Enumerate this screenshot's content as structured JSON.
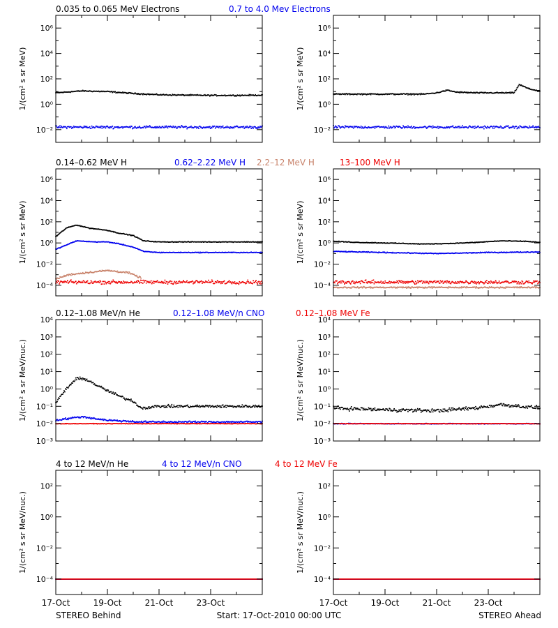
{
  "colors": {
    "black": "#000000",
    "blue": "#0000ee",
    "tan": "#c8826a",
    "red": "#ee0000"
  },
  "panel_rows": [
    {
      "legend": [
        {
          "label": "0.035 to 0.065 MeV Electrons",
          "color": "black"
        },
        {
          "label": "0.7 to 4.0 Mev Electrons",
          "color": "blue"
        }
      ],
      "ylabel": "1/(cm² s sr MeV)",
      "yticks": [
        "10⁻²",
        "10⁰",
        "10²",
        "10⁴",
        "10⁶"
      ]
    },
    {
      "legend": [
        {
          "label": "0.14–0.62 MeV H",
          "color": "black"
        },
        {
          "label": "0.62–2.22 MeV H",
          "color": "blue"
        },
        {
          "label": "2.2–12 MeV H",
          "color": "tan"
        },
        {
          "label": "13–100 MeV H",
          "color": "red"
        }
      ],
      "ylabel": "1/(cm² s sr MeV)",
      "yticks": [
        "10⁻⁴",
        "10⁻²",
        "10⁰",
        "10²",
        "10⁴",
        "10⁶"
      ]
    },
    {
      "legend": [
        {
          "label": "0.12–1.08 MeV/n He",
          "color": "black"
        },
        {
          "label": "0.12–1.08 MeV/n CNO",
          "color": "blue"
        },
        {
          "label": "0.12–1.08 MeV Fe",
          "color": "red"
        }
      ],
      "ylabel": "1/(cm² s sr MeV/nuc.)",
      "yticks": [
        "10⁻³",
        "10⁻²",
        "10⁻¹",
        "10⁰",
        "10¹",
        "10²",
        "10³",
        "10⁴"
      ]
    },
    {
      "legend": [
        {
          "label": "4 to 12 MeV/n He",
          "color": "black"
        },
        {
          "label": "4 to 12 MeV/n CNO",
          "color": "blue"
        },
        {
          "label": "4 to 12 MeV Fe",
          "color": "red"
        }
      ],
      "ylabel": "1/(cm² s sr MeV/nuc.)",
      "yticks": [
        "10⁻⁴",
        "10⁻²",
        "10⁰",
        "10²"
      ]
    }
  ],
  "xticks": [
    "17-Oct",
    "19-Oct",
    "21-Oct",
    "23-Oct"
  ],
  "footer": {
    "left": "STEREO Behind",
    "center": "Start: 17-Oct-2010 00:00 UTC",
    "right": "STEREO Ahead"
  },
  "chart_data": [
    {
      "type": "scatter",
      "spacecraft": "STEREO Behind",
      "x_unit": "days since 17-Oct-2010 00:00 UTC",
      "xlim": [
        0,
        8
      ],
      "ylabel": "1/(cm² s sr MeV)",
      "y_log": true,
      "ylim_exp": [
        -3,
        7
      ],
      "series": [
        {
          "name": "0.035 to 0.065 MeV Electrons",
          "color": "black",
          "noise": 0.07,
          "points": [
            [
              0,
              0.9
            ],
            [
              1,
              1.05
            ],
            [
              2,
              1.0
            ],
            [
              3,
              0.85
            ],
            [
              4,
              0.75
            ],
            [
              5,
              0.72
            ],
            [
              6,
              0.7
            ],
            [
              7,
              0.7
            ],
            [
              8,
              0.72
            ]
          ]
        },
        {
          "name": "0.7 to 4.0 Mev Electrons",
          "color": "blue",
          "noise": 0.15,
          "points": [
            [
              0,
              -1.8
            ],
            [
              8,
              -1.8
            ]
          ]
        }
      ]
    },
    {
      "type": "scatter",
      "spacecraft": "STEREO Ahead",
      "x_unit": "days since 17-Oct-2010 00:00 UTC",
      "xlim": [
        0,
        8
      ],
      "ylabel": "1/(cm² s sr MeV)",
      "y_log": true,
      "ylim_exp": [
        -3,
        7
      ],
      "series": [
        {
          "name": "0.035 to 0.065 MeV Electrons",
          "color": "black",
          "noise": 0.07,
          "points": [
            [
              0,
              0.8
            ],
            [
              3.5,
              0.8
            ],
            [
              4.0,
              0.9
            ],
            [
              4.4,
              1.1
            ],
            [
              4.8,
              0.95
            ],
            [
              5.5,
              0.9
            ],
            [
              6.8,
              0.9
            ],
            [
              7.0,
              0.9
            ],
            [
              7.2,
              1.55
            ],
            [
              7.6,
              1.2
            ],
            [
              8,
              1.05
            ]
          ]
        },
        {
          "name": "0.7 to 4.0 Mev Electrons",
          "color": "blue",
          "noise": 0.15,
          "points": [
            [
              0,
              -1.8
            ],
            [
              8,
              -1.8
            ]
          ]
        }
      ]
    },
    {
      "type": "scatter",
      "spacecraft": "STEREO Behind",
      "x_unit": "days since 17-Oct-2010 00:00 UTC",
      "xlim": [
        0,
        8
      ],
      "ylabel": "1/(cm² s sr MeV)",
      "y_log": true,
      "ylim_exp": [
        -5,
        7
      ],
      "series": [
        {
          "name": "0.14–0.62 MeV H",
          "color": "black",
          "noise": 0.05,
          "points": [
            [
              0,
              0.6
            ],
            [
              0.4,
              1.4
            ],
            [
              0.8,
              1.7
            ],
            [
              1.3,
              1.4
            ],
            [
              2.0,
              1.2
            ],
            [
              2.4,
              0.95
            ],
            [
              3.0,
              0.7
            ],
            [
              3.4,
              0.2
            ],
            [
              4.0,
              0.1
            ],
            [
              8,
              0.1
            ]
          ]
        },
        {
          "name": "0.62–2.22 MeV H",
          "color": "blue",
          "noise": 0.05,
          "points": [
            [
              0,
              -0.6
            ],
            [
              0.4,
              -0.2
            ],
            [
              0.8,
              0.2
            ],
            [
              1.5,
              0.1
            ],
            [
              2.0,
              0.1
            ],
            [
              2.5,
              -0.1
            ],
            [
              3.0,
              -0.4
            ],
            [
              3.4,
              -0.8
            ],
            [
              4.0,
              -0.9
            ],
            [
              8,
              -0.9
            ]
          ]
        },
        {
          "name": "2.2–12 MeV H",
          "color": "tan",
          "noise": 0.12,
          "points": [
            [
              0,
              -3.4
            ],
            [
              0.5,
              -3.0
            ],
            [
              1.2,
              -2.8
            ],
            [
              2.0,
              -2.6
            ],
            [
              2.8,
              -2.8
            ],
            [
              3.3,
              -3.3
            ]
          ]
        },
        {
          "name": "13–100 MeV H",
          "color": "red",
          "noise": 0.25,
          "points": [
            [
              0,
              -3.7
            ],
            [
              8,
              -3.7
            ]
          ]
        }
      ]
    },
    {
      "type": "scatter",
      "spacecraft": "STEREO Ahead",
      "x_unit": "days since 17-Oct-2010 00:00 UTC",
      "xlim": [
        0,
        8
      ],
      "ylabel": "1/(cm² s sr MeV)",
      "y_log": true,
      "ylim_exp": [
        -5,
        7
      ],
      "series": [
        {
          "name": "0.14–0.62 MeV H",
          "color": "black",
          "noise": 0.05,
          "points": [
            [
              0,
              0.15
            ],
            [
              1,
              0.05
            ],
            [
              2,
              0.0
            ],
            [
              3.5,
              -0.1
            ],
            [
              4.5,
              -0.05
            ],
            [
              5.5,
              0.05
            ],
            [
              6.5,
              0.2
            ],
            [
              7.5,
              0.15
            ],
            [
              8,
              0.05
            ]
          ]
        },
        {
          "name": "0.62–2.22 MeV H",
          "color": "blue",
          "noise": 0.06,
          "points": [
            [
              0,
              -0.8
            ],
            [
              2,
              -0.9
            ],
            [
              4,
              -1.0
            ],
            [
              6,
              -0.9
            ],
            [
              8,
              -0.85
            ]
          ]
        },
        {
          "name": "2.2–12 MeV H",
          "color": "tan",
          "noise": 0.1,
          "points": [
            [
              0,
              -4.2
            ],
            [
              8,
              -4.2
            ]
          ]
        },
        {
          "name": "13–100 MeV H",
          "color": "red",
          "noise": 0.25,
          "points": [
            [
              0,
              -3.7
            ],
            [
              8,
              -3.7
            ]
          ]
        }
      ]
    },
    {
      "type": "scatter",
      "spacecraft": "STEREO Behind",
      "x_unit": "days since 17-Oct-2010 00:00 UTC",
      "xlim": [
        0,
        8
      ],
      "ylabel": "1/(cm² s sr MeV/nuc.)",
      "y_log": true,
      "ylim_exp": [
        -3,
        4
      ],
      "series": [
        {
          "name": "0.12–1.08 MeV/n He",
          "color": "black",
          "noise": 0.12,
          "points": [
            [
              0,
              -0.8
            ],
            [
              0.4,
              0.0
            ],
            [
              0.8,
              0.6
            ],
            [
              1.2,
              0.55
            ],
            [
              1.6,
              0.2
            ],
            [
              2.0,
              -0.1
            ],
            [
              2.6,
              -0.5
            ],
            [
              3.0,
              -0.7
            ],
            [
              3.3,
              -1.1
            ],
            [
              4,
              -1.0
            ],
            [
              8,
              -1.0
            ]
          ]
        },
        {
          "name": "0.12–1.08 MeV/n CNO",
          "color": "blue",
          "noise": 0.08,
          "points": [
            [
              0,
              -1.8
            ],
            [
              1.0,
              -1.6
            ],
            [
              2.0,
              -1.8
            ],
            [
              3.3,
              -1.9
            ],
            [
              8,
              -1.9
            ]
          ]
        },
        {
          "name": "0.12–1.08 MeV Fe",
          "color": "red",
          "noise": 0.02,
          "points": [
            [
              0,
              -2.0
            ],
            [
              8,
              -2.0
            ]
          ]
        }
      ]
    },
    {
      "type": "scatter",
      "spacecraft": "STEREO Ahead",
      "x_unit": "days since 17-Oct-2010 00:00 UTC",
      "xlim": [
        0,
        8
      ],
      "ylabel": "1/(cm² s sr MeV/nuc.)",
      "y_log": true,
      "ylim_exp": [
        -3,
        4
      ],
      "series": [
        {
          "name": "0.12–1.08 MeV/n He",
          "color": "black",
          "noise": 0.15,
          "points": [
            [
              0,
              -1.1
            ],
            [
              2,
              -1.2
            ],
            [
              4,
              -1.25
            ],
            [
              5.5,
              -1.1
            ],
            [
              6.5,
              -0.9
            ],
            [
              8,
              -1.1
            ]
          ]
        },
        {
          "name": "0.12–1.08 MeV/n CNO",
          "color": "blue",
          "noise": 0.03,
          "points": [
            [
              0,
              -2.0
            ],
            [
              8,
              -2.0
            ]
          ]
        },
        {
          "name": "0.12–1.08 MeV Fe",
          "color": "red",
          "noise": 0.02,
          "points": [
            [
              0,
              -2.0
            ],
            [
              8,
              -2.0
            ]
          ]
        }
      ]
    },
    {
      "type": "scatter",
      "spacecraft": "STEREO Behind",
      "x_unit": "days since 17-Oct-2010 00:00 UTC",
      "xlim": [
        0,
        8
      ],
      "ylabel": "1/(cm² s sr MeV/nuc.)",
      "y_log": true,
      "ylim_exp": [
        -5,
        3
      ],
      "series": [
        {
          "name": "4 to 12 MeV/n He",
          "color": "black",
          "noise": 0.0,
          "points": [
            [
              0,
              -4.0
            ],
            [
              8,
              -4.0
            ]
          ]
        },
        {
          "name": "4 to 12 MeV/n CNO",
          "color": "blue",
          "noise": 0.0,
          "points": [
            [
              0,
              -4.0
            ],
            [
              8,
              -4.0
            ]
          ]
        },
        {
          "name": "4 to 12 MeV Fe",
          "color": "red",
          "noise": 0.0,
          "points": [
            [
              0,
              -4.0
            ],
            [
              8,
              -4.0
            ]
          ]
        }
      ]
    },
    {
      "type": "scatter",
      "spacecraft": "STEREO Ahead",
      "x_unit": "days since 17-Oct-2010 00:00 UTC",
      "xlim": [
        0,
        8
      ],
      "ylabel": "1/(cm² s sr MeV/nuc.)",
      "y_log": true,
      "ylim_exp": [
        -5,
        3
      ],
      "series": [
        {
          "name": "4 to 12 MeV/n He",
          "color": "black",
          "noise": 0.0,
          "points": [
            [
              0,
              -4.0
            ],
            [
              8,
              -4.0
            ]
          ]
        },
        {
          "name": "4 to 12 MeV/n CNO",
          "color": "blue",
          "noise": 0.0,
          "points": [
            [
              0,
              -4.0
            ],
            [
              8,
              -4.0
            ]
          ]
        },
        {
          "name": "4 to 12 MeV Fe",
          "color": "red",
          "noise": 0.0,
          "points": [
            [
              0,
              -4.0
            ],
            [
              8,
              -4.0
            ]
          ]
        }
      ]
    }
  ]
}
